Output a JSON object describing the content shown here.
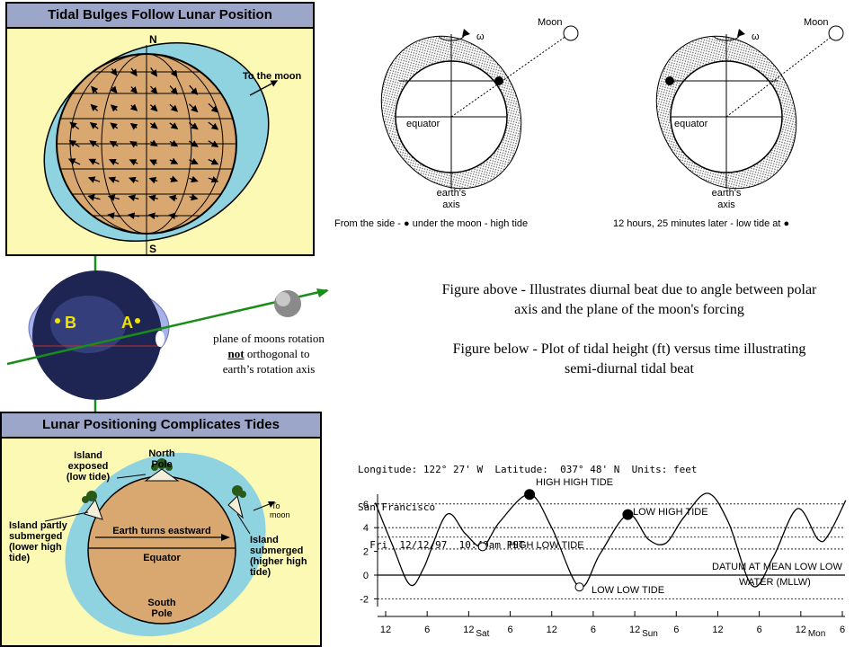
{
  "panel1": {
    "title": "Tidal Bulges Follow Lunar Position",
    "north": "N",
    "south": "S",
    "to_moon": "To the moon"
  },
  "middle": {
    "label_b": "B",
    "label_a": "A",
    "caption_line1": "plane of moons rotation",
    "caption_not": "not",
    "caption_line2_rest": " orthogonal to",
    "caption_line3": "earth’s rotation axis"
  },
  "panel2": {
    "title": "Lunar Positioning Complicates Tides",
    "north_pole": [
      "North",
      "Pole"
    ],
    "south_pole": [
      "South",
      "Pole"
    ],
    "island_exposed": [
      "Island",
      "exposed",
      "(low tide)"
    ],
    "island_partly": [
      "Island partly",
      "submerged",
      "(lower high",
      "tide)"
    ],
    "island_submerged": [
      "Island",
      "submerged",
      "(higher high",
      "tide)"
    ],
    "to_moon": [
      "To",
      "moon"
    ],
    "earth_turns": "Earth turns eastward",
    "equator": "Equator"
  },
  "diagrams": {
    "left": {
      "moon": "Moon",
      "omega": "ω",
      "equator": "equator",
      "axis": [
        "earth's",
        "axis"
      ],
      "caption": "From the side - ● under the moon - high tide"
    },
    "right": {
      "moon": "Moon",
      "omega": "ω",
      "equator": "equator",
      "axis": [
        "earth's",
        "axis"
      ],
      "caption": "12 hours, 25 minutes later - low tide at ●"
    }
  },
  "figure_text": {
    "above": [
      "Figure above - Illustrates diurnal beat due to angle between polar",
      "axis and the plane of the moon's forcing"
    ],
    "below": [
      "Figure below - Plot of tidal height (ft) versus time illustrating",
      "semi-diurnal tidal beat"
    ]
  },
  "tide_header": {
    "line1": "Longitude: 122° 27' W  Latitude:  037° 48' N  Units: feet",
    "line2": "San Francisco",
    "line3": "  Fri  12/12/97  10:49am PST"
  },
  "chart_data": {
    "type": "line",
    "title": "",
    "xlabel": "",
    "ylabel": "",
    "ylim": [
      -3,
      7
    ],
    "yticks": [
      6,
      4,
      2,
      0,
      -2
    ],
    "xlim": [
      0,
      64
    ],
    "x_ticks": [
      {
        "x": 0,
        "label": "12"
      },
      {
        "x": 6,
        "label": "6"
      },
      {
        "x": 12,
        "label": "12",
        "day": "Sat"
      },
      {
        "x": 18,
        "label": "6"
      },
      {
        "x": 24,
        "label": "12"
      },
      {
        "x": 30,
        "label": "6"
      },
      {
        "x": 36,
        "label": "12",
        "day": "Sun"
      },
      {
        "x": 42,
        "label": "6"
      },
      {
        "x": 48,
        "label": "12"
      },
      {
        "x": 54,
        "label": "6"
      },
      {
        "x": 60,
        "label": "12",
        "day": "Mon"
      },
      {
        "x": 66,
        "label": "6"
      }
    ],
    "reference_lines": [
      6.0,
      4.0,
      3.2,
      2.2,
      0,
      -2.0
    ],
    "series": [
      {
        "points": [
          [
            -1.5,
            6.1
          ],
          [
            1.0,
            2.5
          ],
          [
            3.5,
            -0.8
          ],
          [
            5.5,
            0.6
          ],
          [
            8.8,
            5.1
          ],
          [
            11.5,
            3.5
          ],
          [
            14.0,
            2.4
          ],
          [
            16.5,
            4.5
          ],
          [
            20.8,
            6.8
          ],
          [
            24.0,
            4.0
          ],
          [
            28.0,
            -1.0
          ],
          [
            31.0,
            1.8
          ],
          [
            35.0,
            5.1
          ],
          [
            38.0,
            3.0
          ],
          [
            40.5,
            2.7
          ],
          [
            43.0,
            4.8
          ],
          [
            46.5,
            6.9
          ],
          [
            49.5,
            4.5
          ],
          [
            53.0,
            -0.9
          ],
          [
            56.0,
            1.5
          ],
          [
            59.5,
            5.6
          ],
          [
            62.5,
            3.0
          ],
          [
            64.0,
            3.4
          ],
          [
            66.5,
            6.3
          ]
        ]
      }
    ],
    "annotations": [
      {
        "text": "HIGH HIGH TIDE",
        "x": 20.8,
        "y": 6.8,
        "marker": "filled"
      },
      {
        "text": "LOW HIGH TIDE",
        "x": 35.0,
        "y": 5.1,
        "marker": "filled"
      },
      {
        "text": "HIGH LOW TIDE",
        "x": 14.0,
        "y": 2.4,
        "marker": "open"
      },
      {
        "text": "LOW LOW TIDE",
        "x": 28.0,
        "y": -1.0,
        "marker": "open"
      },
      {
        "text": "DATUM AT MEAN LOW LOW",
        "x": null,
        "y": null
      },
      {
        "text": "WATER (MLLW)",
        "x": null,
        "y": null
      }
    ]
  }
}
